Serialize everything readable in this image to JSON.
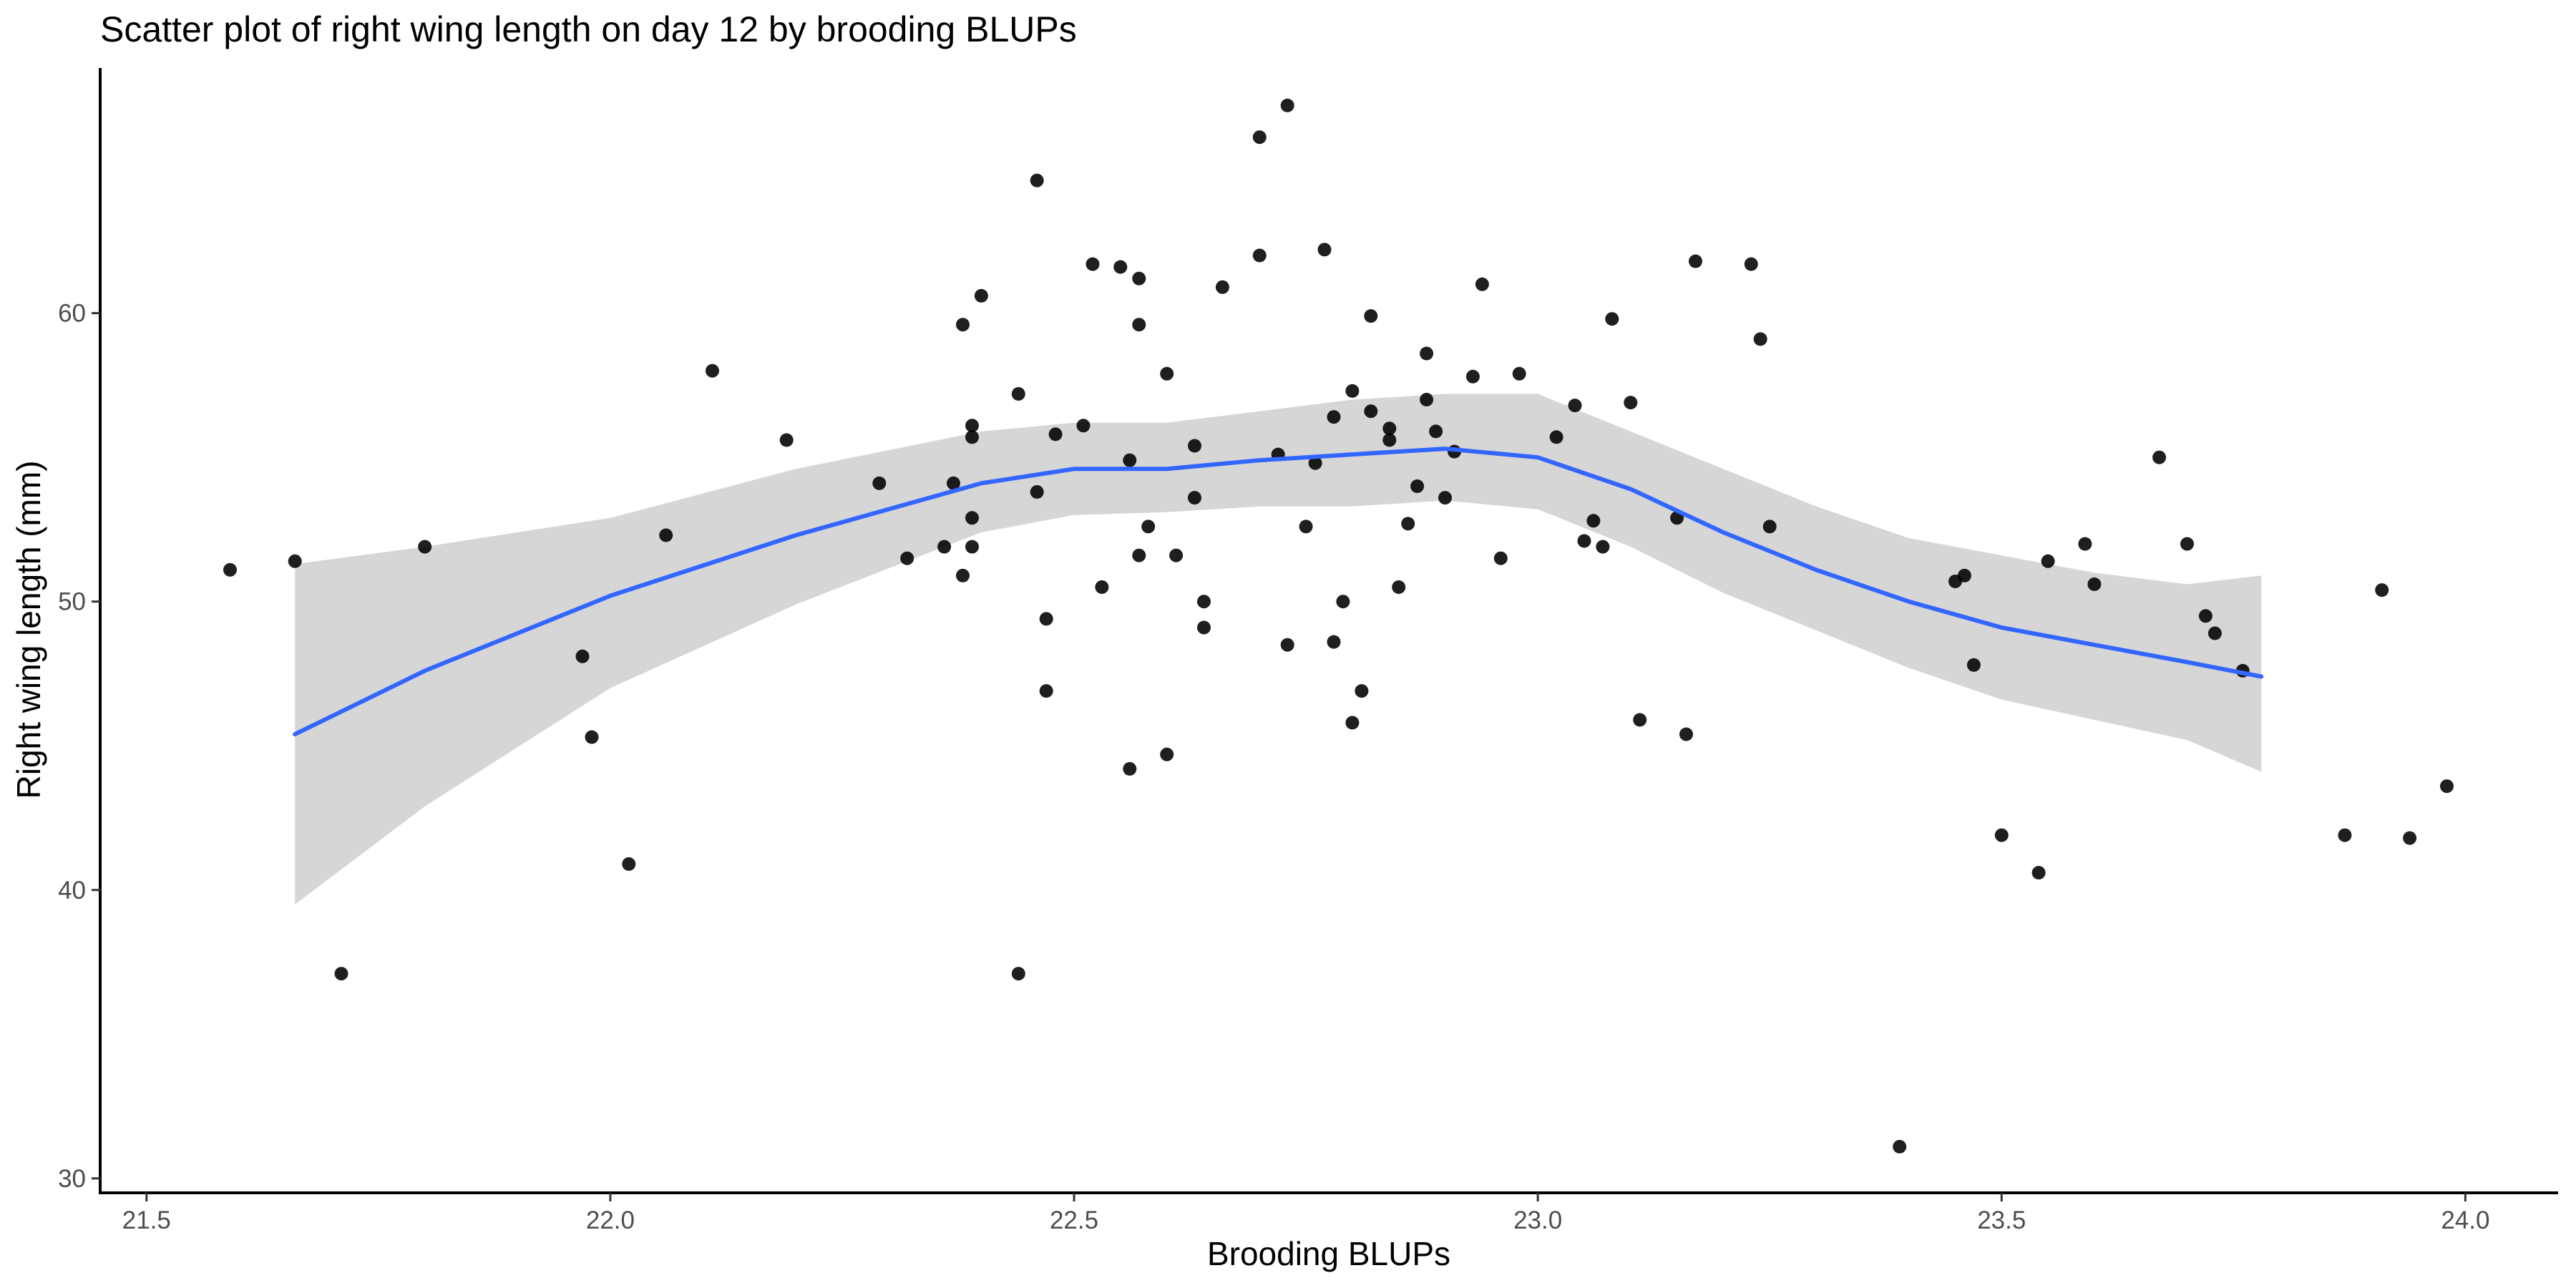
{
  "chart_data": {
    "type": "scatter",
    "title": "Scatter plot of right wing length on day 12 by brooding BLUPs",
    "xlabel": "Brooding BLUPs",
    "ylabel": "Right wing length (mm)",
    "xlim": [
      21.45,
      24.1
    ],
    "ylim": [
      29.5,
      68.5
    ],
    "x_ticks": [
      "21.5",
      "22.0",
      "22.5",
      "23.0",
      "23.5",
      "24.0"
    ],
    "y_ticks": [
      "30",
      "40",
      "50",
      "60"
    ],
    "x_tick_values": [
      21.5,
      22.0,
      22.5,
      23.0,
      23.5,
      24.0
    ],
    "y_tick_values": [
      30,
      40,
      50,
      60
    ],
    "grid": false,
    "legend": "none",
    "colors": {
      "points": "#000000",
      "smooth_line": "#3366FF",
      "confidence_band": "#999999"
    },
    "points": [
      [
        21.59,
        51.1
      ],
      [
        21.66,
        51.4
      ],
      [
        21.71,
        37.1
      ],
      [
        21.8,
        51.9
      ],
      [
        21.97,
        48.1
      ],
      [
        21.98,
        45.3
      ],
      [
        22.02,
        40.9
      ],
      [
        22.06,
        52.3
      ],
      [
        22.11,
        58.0
      ],
      [
        22.19,
        55.6
      ],
      [
        22.29,
        54.1
      ],
      [
        22.32,
        51.5
      ],
      [
        22.36,
        51.9
      ],
      [
        22.37,
        54.1
      ],
      [
        22.38,
        59.6
      ],
      [
        22.38,
        50.9
      ],
      [
        22.39,
        56.1
      ],
      [
        22.39,
        55.7
      ],
      [
        22.39,
        52.9
      ],
      [
        22.39,
        51.9
      ],
      [
        22.4,
        60.6
      ],
      [
        22.44,
        57.2
      ],
      [
        22.44,
        37.1
      ],
      [
        22.46,
        64.6
      ],
      [
        22.46,
        53.8
      ],
      [
        22.47,
        49.4
      ],
      [
        22.47,
        46.9
      ],
      [
        22.48,
        55.8
      ],
      [
        22.51,
        56.1
      ],
      [
        22.52,
        61.7
      ],
      [
        22.53,
        50.5
      ],
      [
        22.55,
        61.6
      ],
      [
        22.56,
        54.9
      ],
      [
        22.56,
        44.2
      ],
      [
        22.57,
        61.2
      ],
      [
        22.57,
        59.6
      ],
      [
        22.57,
        51.6
      ],
      [
        22.58,
        52.6
      ],
      [
        22.6,
        57.9
      ],
      [
        22.6,
        44.7
      ],
      [
        22.61,
        51.6
      ],
      [
        22.63,
        55.4
      ],
      [
        22.63,
        53.6
      ],
      [
        22.64,
        50.0
      ],
      [
        22.64,
        49.1
      ],
      [
        22.66,
        60.9
      ],
      [
        22.7,
        66.1
      ],
      [
        22.7,
        62.0
      ],
      [
        22.72,
        55.1
      ],
      [
        22.73,
        67.2
      ],
      [
        22.73,
        48.5
      ],
      [
        22.75,
        52.6
      ],
      [
        22.76,
        54.8
      ],
      [
        22.77,
        62.2
      ],
      [
        22.78,
        56.4
      ],
      [
        22.78,
        48.6
      ],
      [
        22.79,
        50.0
      ],
      [
        22.8,
        57.3
      ],
      [
        22.8,
        45.8
      ],
      [
        22.81,
        46.9
      ],
      [
        22.82,
        59.9
      ],
      [
        22.82,
        56.6
      ],
      [
        22.84,
        56.0
      ],
      [
        22.84,
        55.6
      ],
      [
        22.85,
        50.5
      ],
      [
        22.86,
        52.7
      ],
      [
        22.87,
        54.0
      ],
      [
        22.88,
        58.6
      ],
      [
        22.88,
        57.0
      ],
      [
        22.89,
        55.9
      ],
      [
        22.9,
        53.6
      ],
      [
        22.91,
        55.2
      ],
      [
        22.93,
        57.8
      ],
      [
        22.94,
        61.0
      ],
      [
        22.96,
        51.5
      ],
      [
        22.98,
        57.9
      ],
      [
        23.02,
        55.7
      ],
      [
        23.04,
        56.8
      ],
      [
        23.05,
        52.1
      ],
      [
        23.06,
        52.8
      ],
      [
        23.07,
        51.9
      ],
      [
        23.08,
        59.8
      ],
      [
        23.1,
        56.9
      ],
      [
        23.11,
        45.9
      ],
      [
        23.15,
        52.9
      ],
      [
        23.16,
        45.4
      ],
      [
        23.17,
        61.8
      ],
      [
        23.23,
        61.7
      ],
      [
        23.24,
        59.1
      ],
      [
        23.25,
        52.6
      ],
      [
        23.39,
        31.1
      ],
      [
        23.45,
        50.7
      ],
      [
        23.46,
        50.9
      ],
      [
        23.47,
        47.8
      ],
      [
        23.5,
        41.9
      ],
      [
        23.54,
        40.6
      ],
      [
        23.55,
        51.4
      ],
      [
        23.59,
        52.0
      ],
      [
        23.6,
        50.6
      ],
      [
        23.67,
        55.0
      ],
      [
        23.7,
        52.0
      ],
      [
        23.72,
        49.5
      ],
      [
        23.73,
        48.9
      ],
      [
        23.76,
        47.6
      ],
      [
        23.87,
        41.9
      ],
      [
        23.91,
        50.4
      ],
      [
        23.94,
        41.8
      ],
      [
        23.98,
        43.6
      ]
    ],
    "smooth": {
      "method": "loess",
      "x": [
        21.66,
        21.8,
        22.0,
        22.2,
        22.4,
        22.5,
        22.6,
        22.7,
        22.8,
        22.9,
        23.0,
        23.1,
        23.2,
        23.3,
        23.4,
        23.5,
        23.6,
        23.7,
        23.78
      ],
      "y": [
        45.4,
        47.6,
        50.2,
        52.3,
        54.1,
        54.6,
        54.6,
        54.9,
        55.1,
        55.3,
        55.0,
        53.9,
        52.4,
        51.1,
        50.0,
        49.1,
        48.5,
        47.9,
        47.4
      ],
      "lower": [
        39.5,
        42.9,
        47.0,
        49.9,
        52.4,
        53.0,
        53.1,
        53.3,
        53.3,
        53.5,
        53.2,
        51.9,
        50.3,
        49.0,
        47.7,
        46.6,
        45.9,
        45.2,
        44.1
      ],
      "upper": [
        51.3,
        51.9,
        52.9,
        54.6,
        55.9,
        56.2,
        56.2,
        56.6,
        57.0,
        57.2,
        57.2,
        55.9,
        54.6,
        53.3,
        52.2,
        51.6,
        51.0,
        50.6,
        50.9
      ]
    }
  }
}
